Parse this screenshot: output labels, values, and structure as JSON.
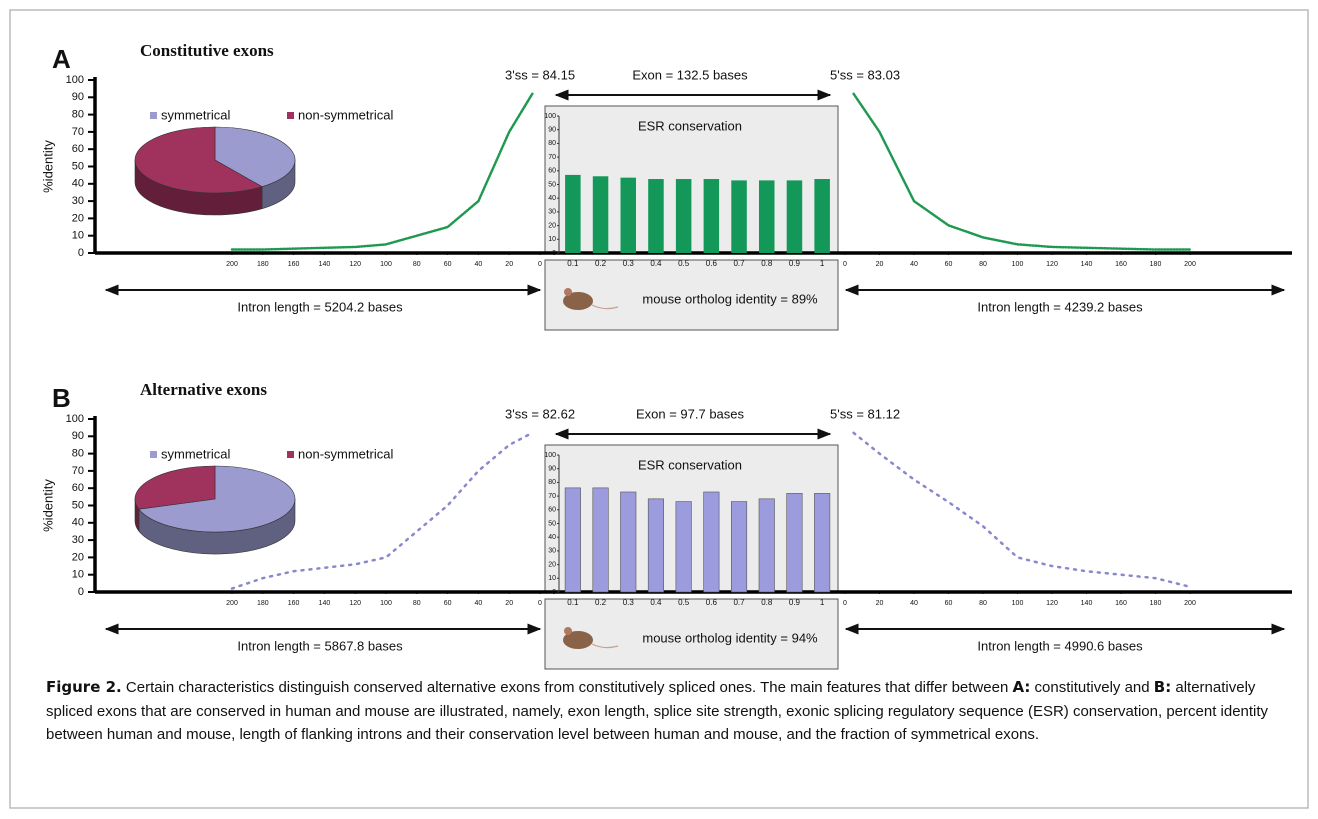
{
  "panels": [
    {
      "label": "A",
      "title": "Constitutive exons",
      "splice_3": "3'ss = 84.15",
      "exon": "Exon = 132.5 bases",
      "splice_5": "5'ss = 83.03",
      "intron_left": "Intron length = 5204.2 bases",
      "intron_right": "Intron length = 4239.2 bases",
      "mouse": "mouse ortholog identity = 89%"
    },
    {
      "label": "B",
      "title": "Alternative exons",
      "splice_3": "3'ss = 82.62",
      "exon": "Exon = 97.7 bases",
      "splice_5": "5'ss = 81.12",
      "intron_left": "Intron length = 5867.8 bases",
      "intron_right": "Intron length = 4990.6 bases",
      "mouse": "mouse ortholog identity = 94%"
    }
  ],
  "chart_data": [
    {
      "type": "pie",
      "labels": [
        "symmetrical",
        "non-symmetrical"
      ],
      "values": [
        40,
        60
      ],
      "colors": [
        "#9b9bd0",
        "#a0325e"
      ]
    },
    {
      "type": "bar",
      "title": "ESR conservation",
      "categories": [
        "0.1",
        "0.2",
        "0.3",
        "0.4",
        "0.5",
        "0.6",
        "0.7",
        "0.8",
        "0.9",
        "1"
      ],
      "values": [
        57,
        56,
        55,
        54,
        54,
        54,
        53,
        53,
        53,
        54
      ],
      "color": "#13985a",
      "ylim": [
        0,
        100
      ],
      "yticks": [
        0,
        10,
        20,
        30,
        40,
        50,
        60,
        70,
        80,
        90,
        100
      ]
    },
    {
      "type": "line",
      "ylabel": "%identity",
      "x": [
        200,
        180,
        160,
        140,
        120,
        100,
        80,
        60,
        40,
        20,
        5
      ],
      "values": [
        2,
        2,
        2.5,
        3,
        3.5,
        5,
        10,
        15,
        30,
        70,
        92
      ],
      "color": "#1f9950",
      "xlim": [
        200,
        0
      ],
      "xticks": [
        200,
        180,
        160,
        140,
        120,
        100,
        80,
        60,
        40,
        20,
        0
      ],
      "ylim": [
        0,
        100
      ],
      "yticks": [
        0,
        10,
        20,
        30,
        40,
        50,
        60,
        70,
        80,
        90,
        100
      ]
    },
    {
      "type": "line",
      "x": [
        5,
        20,
        40,
        60,
        80,
        100,
        120,
        140,
        160,
        180,
        200
      ],
      "values": [
        92,
        70,
        30,
        16,
        9,
        5,
        3.5,
        3,
        2.5,
        2,
        2
      ],
      "color": "#1f9950",
      "xlim": [
        0,
        200
      ],
      "xticks": [
        0,
        20,
        40,
        60,
        80,
        100,
        120,
        140,
        160,
        180,
        200
      ],
      "ylim": [
        0,
        100
      ]
    },
    {
      "type": "pie",
      "labels": [
        "symmetrical",
        "non-symmetrical"
      ],
      "values": [
        70,
        30
      ],
      "colors": [
        "#9b9bd0",
        "#a0325e"
      ]
    },
    {
      "type": "bar",
      "title": "ESR conservation",
      "categories": [
        "0.1",
        "0.2",
        "0.3",
        "0.4",
        "0.5",
        "0.6",
        "0.7",
        "0.8",
        "0.9",
        "1"
      ],
      "values": [
        76,
        76,
        73,
        68,
        66,
        73,
        66,
        68,
        72,
        72
      ],
      "color": "#9b9bdd",
      "ylim": [
        0,
        100
      ],
      "yticks": [
        0,
        10,
        20,
        30,
        40,
        50,
        60,
        70,
        80,
        90,
        100
      ]
    },
    {
      "type": "line",
      "ylabel": "%identity",
      "x": [
        200,
        180,
        160,
        140,
        120,
        100,
        80,
        60,
        40,
        20,
        5
      ],
      "values": [
        2,
        8,
        12,
        14,
        16,
        20,
        35,
        50,
        70,
        85,
        92
      ],
      "color": "#8888cc",
      "xlim": [
        200,
        0
      ],
      "xticks": [
        200,
        180,
        160,
        140,
        120,
        100,
        80,
        60,
        40,
        20,
        0
      ],
      "ylim": [
        0,
        100
      ],
      "yticks": [
        0,
        10,
        20,
        30,
        40,
        50,
        60,
        70,
        80,
        90,
        100
      ]
    },
    {
      "type": "line",
      "x": [
        5,
        20,
        40,
        60,
        80,
        100,
        120,
        140,
        160,
        180,
        200
      ],
      "values": [
        92,
        80,
        65,
        52,
        38,
        20,
        15,
        12,
        10,
        8,
        3
      ],
      "color": "#8888cc",
      "xlim": [
        0,
        200
      ],
      "xticks": [
        0,
        20,
        40,
        60,
        80,
        100,
        120,
        140,
        160,
        180,
        200
      ],
      "ylim": [
        0,
        100
      ]
    }
  ],
  "caption": {
    "label": "Figure 2.",
    "text1": " Certain characteristics distinguish conserved alternative exons from constitutively spliced ones. The main features that differ between ",
    "a": "A:",
    "text2": " constitutively and ",
    "b": "B:",
    "text3": " alternatively spliced exons that are conserved in human and mouse are illustrated, namely, exon length, splice site strength, exonic splicing regulatory sequence (ESR) conservation, percent identity between human and mouse, length of flanking introns and their conservation level between human and mouse, and the fraction of symmetrical exons."
  }
}
